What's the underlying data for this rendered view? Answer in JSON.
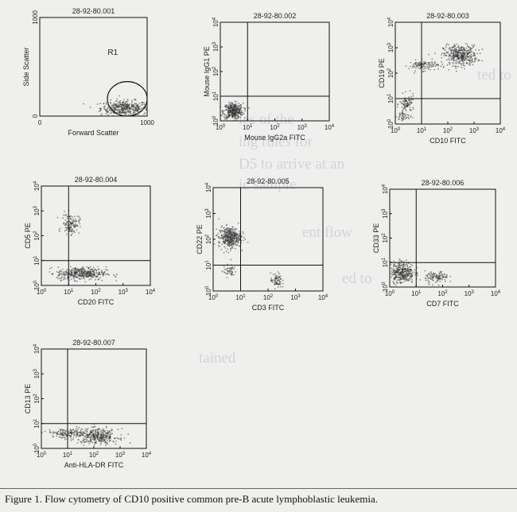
{
  "caption": "Figure 1. Flow cytometry of CD10 positive common pre-B acute lymphoblastic leukemia.",
  "chart_data": [
    {
      "type": "scatter",
      "title": "28-92-80.001",
      "xlabel": "Forward Scatter",
      "ylabel": "Side Scatter",
      "axis": "linear",
      "xlim": [
        0,
        1000
      ],
      "ylim": [
        0,
        1000
      ],
      "xticks": [
        "0",
        "1000"
      ],
      "yticks": [
        "0",
        "1000"
      ],
      "gate": {
        "label": "R1",
        "shape": "ellipse",
        "x": [
          630,
          1000
        ],
        "y": [
          0,
          350
        ]
      },
      "clusters": [
        {
          "x": 790,
          "y": 80,
          "sx": 110,
          "sy": 38,
          "n": 380
        }
      ]
    },
    {
      "type": "scatter",
      "title": "28-92-80.002",
      "xlabel": "Mouse IgG2a FITC",
      "ylabel": "Mouse IgG1 PE",
      "axis": "log",
      "xlim": [
        1,
        10000
      ],
      "ylim": [
        1,
        10000
      ],
      "xticks": [
        "10^0",
        "10^1",
        "10^2",
        "10^3",
        "10^4"
      ],
      "yticks": [
        "10^0",
        "10^1",
        "10^2",
        "10^3",
        "10^4"
      ],
      "quadrant": {
        "x": 10,
        "y": 10
      },
      "clusters": [
        {
          "x": 3,
          "y": 2.5,
          "sx": 0.18,
          "sy": 0.16,
          "n": 360
        }
      ]
    },
    {
      "type": "scatter",
      "title": "28-92-80.003",
      "xlabel": "CD10 FITC",
      "ylabel": "CD19 PE",
      "axis": "log",
      "xlim": [
        1,
        10000
      ],
      "ylim": [
        1,
        10000
      ],
      "xticks": [
        "10^0",
        "10^1",
        "10^2",
        "10^3",
        "10^4"
      ],
      "yticks": [
        "10^0",
        "10^1",
        "10^2",
        "10^3",
        "10^4"
      ],
      "quadrant": {
        "x": 10,
        "y": 10
      },
      "clusters": [
        {
          "x": 300,
          "y": 500,
          "sx": 0.32,
          "sy": 0.2,
          "n": 380
        },
        {
          "x": 12,
          "y": 200,
          "sx": 0.28,
          "sy": 0.1,
          "n": 110
        },
        {
          "x": 2.8,
          "y": 6,
          "sx": 0.14,
          "sy": 0.18,
          "n": 90
        },
        {
          "x": 2,
          "y": 2,
          "sx": 0.12,
          "sy": 0.12,
          "n": 40
        }
      ]
    },
    {
      "type": "scatter",
      "title": "28-92-80.004",
      "xlabel": "CD20 FITC",
      "ylabel": "CD5 PE",
      "axis": "log",
      "xlim": [
        1,
        10000
      ],
      "ylim": [
        1,
        10000
      ],
      "xticks": [
        "10^0",
        "10^1",
        "10^2",
        "10^3",
        "10^4"
      ],
      "yticks": [
        "10^0",
        "10^1",
        "10^2",
        "10^3",
        "10^4"
      ],
      "quadrant": {
        "x": 10,
        "y": 10
      },
      "clusters": [
        {
          "x": 12,
          "y": 300,
          "sx": 0.16,
          "sy": 0.2,
          "n": 120
        },
        {
          "x": 30,
          "y": 3,
          "sx": 0.45,
          "sy": 0.13,
          "n": 380
        }
      ]
    },
    {
      "type": "scatter",
      "title": "28-92-80.005",
      "xlabel": "CD3 FITC",
      "ylabel": "CD22 PE",
      "axis": "log",
      "xlim": [
        1,
        10000
      ],
      "ylim": [
        1,
        10000
      ],
      "xticks": [
        "10^0",
        "10^1",
        "10^2",
        "10^3",
        "10^4"
      ],
      "yticks": [
        "10^0",
        "10^1",
        "10^2",
        "10^3",
        "10^4"
      ],
      "quadrant": {
        "x": 10,
        "y": 10
      },
      "clusters": [
        {
          "x": 4,
          "y": 120,
          "sx": 0.2,
          "sy": 0.2,
          "n": 380
        },
        {
          "x": 4,
          "y": 6,
          "sx": 0.12,
          "sy": 0.12,
          "n": 45
        },
        {
          "x": 200,
          "y": 2.5,
          "sx": 0.1,
          "sy": 0.14,
          "n": 70
        }
      ]
    },
    {
      "type": "scatter",
      "title": "28-92-80.006",
      "xlabel": "CD7 FITC",
      "ylabel": "CD33 PE",
      "axis": "log",
      "xlim": [
        1,
        10000
      ],
      "ylim": [
        1,
        10000
      ],
      "xticks": [
        "10^0",
        "10^1",
        "10^2",
        "10^3",
        "10^4"
      ],
      "yticks": [
        "10^0",
        "10^1",
        "10^2",
        "10^3",
        "10^4"
      ],
      "quadrant": {
        "x": 10,
        "y": 10
      },
      "clusters": [
        {
          "x": 3,
          "y": 4,
          "sx": 0.22,
          "sy": 0.22,
          "n": 330
        },
        {
          "x": 60,
          "y": 2.5,
          "sx": 0.22,
          "sy": 0.12,
          "n": 110
        }
      ]
    },
    {
      "type": "scatter",
      "title": "28-92-80.007",
      "xlabel": "Anti-HLA-DR FITC",
      "ylabel": "CD13 PE",
      "axis": "log",
      "xlim": [
        1,
        10000
      ],
      "ylim": [
        1,
        10000
      ],
      "xticks": [
        "10^0",
        "10^1",
        "10^2",
        "10^3",
        "10^4"
      ],
      "yticks": [
        "10^0",
        "10^1",
        "10^2",
        "10^3",
        "10^4"
      ],
      "quadrant": {
        "x": 10,
        "y": 10
      },
      "clusters": [
        {
          "x": 150,
          "y": 3,
          "sx": 0.38,
          "sy": 0.15,
          "n": 320
        },
        {
          "x": 10,
          "y": 4,
          "sx": 0.42,
          "sy": 0.1,
          "n": 150
        }
      ]
    }
  ],
  "background_text": [
    "ted to",
    "ies of the",
    "ing rules for",
    "D5 to arrive at an",
    "ic sample",
    "ent flow",
    "ed to",
    "tained"
  ]
}
